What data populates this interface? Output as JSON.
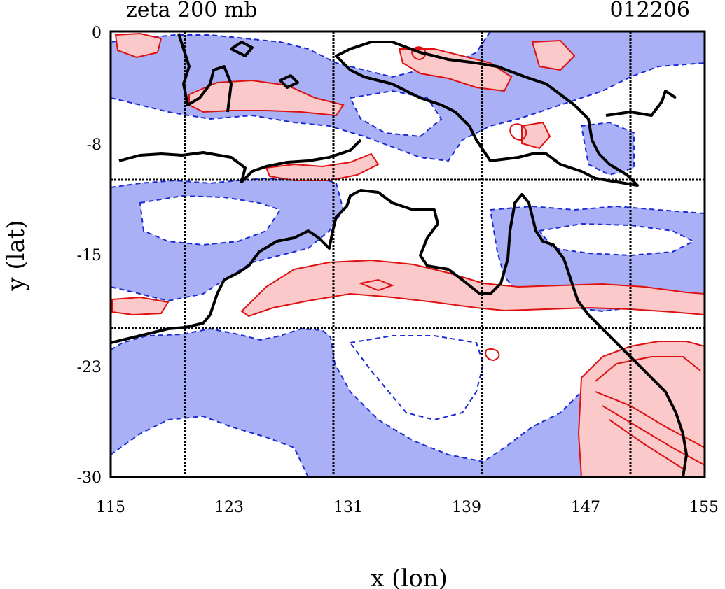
{
  "header": {
    "title": "zeta 200 mb",
    "date_code": "012206"
  },
  "axes": {
    "x_label": "x (lon)",
    "y_label": "y (lat)",
    "x_ticks": [
      "115",
      "123",
      "131",
      "139",
      "147",
      "155"
    ],
    "y_ticks": [
      "0",
      "-8",
      "-15",
      "-23",
      "-30"
    ]
  },
  "map": {
    "lon_range": [
      115,
      155
    ],
    "lat_range": [
      -30,
      0
    ],
    "grid_lons": [
      120,
      130,
      140,
      150
    ],
    "grid_lats": [
      -10,
      -20
    ],
    "colors": {
      "negative_fill": "#aab0f5",
      "negative_contour": "#1a2bd6",
      "positive_fill": "#fbc9c9",
      "positive_contour": "#e01010",
      "coastline": "#000000"
    }
  }
}
